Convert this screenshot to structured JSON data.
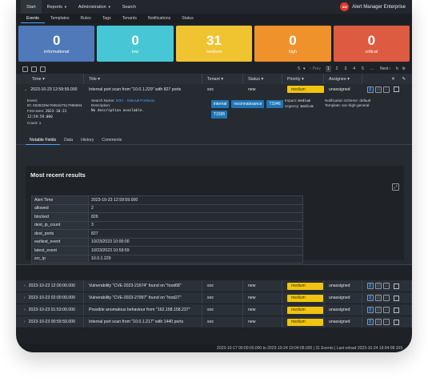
{
  "nav": {
    "items": [
      {
        "label": "Start",
        "active": true,
        "caret": false
      },
      {
        "label": "Reports",
        "active": false,
        "caret": true
      },
      {
        "label": "Administration",
        "active": false,
        "caret": true
      },
      {
        "label": "Search",
        "active": false,
        "caret": false
      }
    ],
    "brand": "Alert Manager Enterprise",
    "brand_logo": "logo"
  },
  "subnav": [
    "Events",
    "Templates",
    "Rules",
    "Tags",
    "Tenants",
    "Notifications",
    "Status"
  ],
  "tiles": [
    {
      "count": "0",
      "label": "informational",
      "color": "#4f79b8"
    },
    {
      "count": "0",
      "label": "low",
      "color": "#47c7d6"
    },
    {
      "count": "31",
      "label": "medium",
      "color": "#f0c330"
    },
    {
      "count": "0",
      "label": "high",
      "color": "#f0922b"
    },
    {
      "count": "0",
      "label": "critical",
      "color": "#dc5b41"
    }
  ],
  "toolbar": {
    "page_size": "5",
    "prev": "‹ Prev",
    "pages": [
      "1",
      "2",
      "3",
      "4",
      "5",
      "..."
    ],
    "current_page": "1",
    "next": "Next ›"
  },
  "columns": {
    "time": "Time",
    "title": "Title",
    "tenant": "Tenant",
    "status": "Status",
    "priority": "Priority",
    "assignee": "Assignee"
  },
  "expanded_event": {
    "time": "2023-10-23 12:59:59.000",
    "title": "Internal port scan from \"10.0.1.229\" with 827 ports",
    "tenant": "soc",
    "status": "new",
    "priority": "medium",
    "assignee": "unassigned",
    "event_label": "Event:",
    "event_id": "ID: 6536335e76651b7517965694",
    "first_seen_label": "First seen:",
    "first_seen": "2023-10-23 12:59:59.000",
    "count": "Count: 1",
    "search_name_label": "Search Name:",
    "search_name": "SOC - Internal Portscan",
    "description_label": "Description:",
    "description": "No description available.",
    "tags": [
      "internal",
      "reconnaissance",
      "T1046",
      "T1595"
    ],
    "impact_label": "Impact:",
    "impact": "medium",
    "urgency_label": "Urgency:",
    "urgency": "medium",
    "notification_label": "Notification Scheme:",
    "notification": "default",
    "template_label": "Template:",
    "template": "soc-high-general",
    "subtabs": [
      "Notable Fields",
      "Data",
      "History",
      "Comments"
    ],
    "panel_title": "Most recent results",
    "results": [
      {
        "key": "Alert Time",
        "value": "2023-10-23 12:59:59.000"
      },
      {
        "key": "allowed",
        "value": "2"
      },
      {
        "key": "blocked",
        "value": "826"
      },
      {
        "key": "dest_ip_count",
        "value": "3"
      },
      {
        "key": "dest_ports",
        "value": "827"
      },
      {
        "key": "earliest_event",
        "value": "10/23/2023 10:00:00"
      },
      {
        "key": "latest_event",
        "value": "10/23/2023 10:59:59"
      },
      {
        "key": "src_ip",
        "value": "10.0.1.229"
      }
    ]
  },
  "events": [
    {
      "time": "2023-10-23 12:00:00.000",
      "title": "Vulnerability \"CVE-2023-21674\" found on \"host68\"",
      "tenant": "soc",
      "status": "new",
      "priority": "medium",
      "assignee": "unassigned"
    },
    {
      "time": "2023-10-23 02:00:00.000",
      "title": "Vulnerability \"CVE-2023-27997\" found on \"host27\"",
      "tenant": "soc",
      "status": "new",
      "priority": "medium",
      "assignee": "unassigned"
    },
    {
      "time": "2023-10-23 01:53:00.000",
      "title": "Possible anomalous behaviour from \"162.158.158.237\"",
      "tenant": "soc",
      "status": "new",
      "priority": "medium",
      "assignee": "unassigned"
    },
    {
      "time": "2023-10-23 00:59:59.000",
      "title": "Internal port scan from \"10.0.1.217\" with 1440 ports",
      "tenant": "soc",
      "status": "new",
      "priority": "medium",
      "assignee": "unassigned"
    }
  ],
  "footer": "2023-10-17 00:00:00.000 to 2023-10-24 19:04:08.000  |  31 Events  |  Last reload 2023-10-24 19:04:08.169"
}
